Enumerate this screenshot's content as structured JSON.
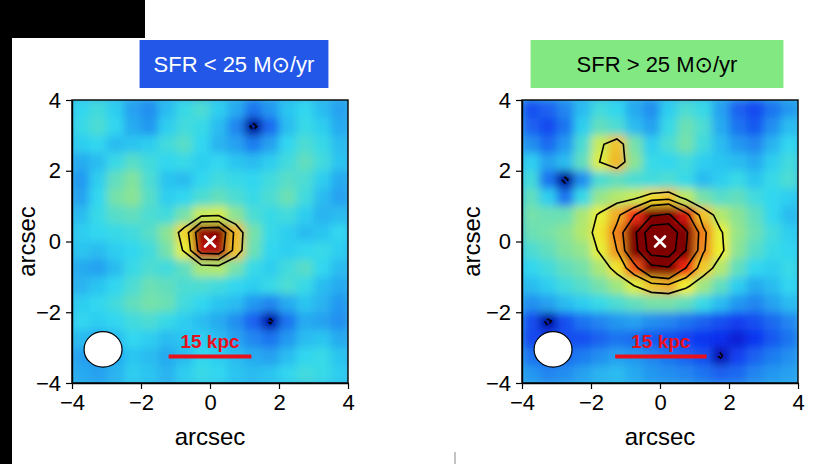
{
  "chart_data": [
    {
      "type": "heatmap",
      "title": "SFR < 25 M⊙/yr",
      "xlabel": "arcsec",
      "ylabel": "arcsec",
      "xlim": [
        -4,
        4
      ],
      "ylim": [
        -4,
        4
      ],
      "xticks": [
        {
          "value": -4,
          "label": "−4"
        },
        {
          "value": -2,
          "label": "−2"
        },
        0,
        2,
        4
      ],
      "yticks": [
        {
          "value": -4,
          "label": "−4"
        },
        {
          "value": -2,
          "label": "−2"
        },
        0,
        2,
        4
      ],
      "zlim": [
        -2.5,
        5
      ],
      "cells": [
        [
          0.3,
          0.5,
          0.2,
          -0.3,
          -0.5,
          0.0,
          0.4,
          0.6,
          0.2,
          -0.2,
          -0.8,
          -0.4,
          0.1,
          0.3,
          0.0,
          -0.3
        ],
        [
          0.4,
          0.6,
          0.3,
          -0.2,
          -0.4,
          0.2,
          0.5,
          0.4,
          0.0,
          -0.6,
          -2.3,
          -0.9,
          0.0,
          0.4,
          0.2,
          -0.2
        ],
        [
          0.2,
          0.3,
          0.0,
          0.1,
          0.2,
          0.5,
          0.7,
          0.3,
          -0.1,
          -0.3,
          -0.7,
          -0.3,
          0.3,
          0.6,
          0.4,
          0.0
        ],
        [
          -0.2,
          0.0,
          0.4,
          0.7,
          0.5,
          0.3,
          0.4,
          0.2,
          0.3,
          0.1,
          0.0,
          0.2,
          0.5,
          0.8,
          0.5,
          0.1
        ],
        [
          -0.4,
          0.2,
          0.8,
          1.1,
          0.6,
          0.1,
          0.0,
          0.3,
          0.5,
          0.4,
          0.3,
          0.5,
          0.7,
          0.6,
          0.2,
          -0.2
        ],
        [
          -0.3,
          0.3,
          1.0,
          1.2,
          0.7,
          0.2,
          0.3,
          0.6,
          0.8,
          0.6,
          0.4,
          0.6,
          0.9,
          0.5,
          0.0,
          -0.3
        ],
        [
          0.0,
          0.4,
          0.7,
          0.8,
          0.6,
          0.5,
          1.0,
          1.8,
          1.9,
          1.2,
          0.6,
          0.4,
          0.5,
          0.2,
          -0.1,
          0.0
        ],
        [
          0.2,
          0.3,
          0.4,
          0.5,
          0.7,
          1.2,
          2.4,
          4.8,
          4.9,
          2.7,
          1.0,
          0.4,
          0.2,
          0.0,
          0.1,
          0.3
        ],
        [
          0.1,
          0.0,
          0.2,
          0.3,
          0.5,
          1.0,
          2.1,
          4.5,
          4.6,
          2.6,
          0.9,
          0.3,
          0.2,
          0.3,
          0.4,
          0.2
        ],
        [
          -0.2,
          -0.3,
          0.0,
          0.4,
          0.6,
          0.5,
          0.8,
          1.5,
          1.6,
          1.0,
          0.4,
          0.2,
          0.5,
          0.7,
          0.3,
          0.0
        ],
        [
          -0.1,
          0.1,
          0.3,
          0.6,
          0.9,
          0.8,
          0.6,
          0.6,
          0.5,
          0.3,
          0.2,
          0.4,
          0.6,
          0.4,
          0.0,
          -0.2
        ],
        [
          0.2,
          0.3,
          0.5,
          0.8,
          1.0,
          0.9,
          0.5,
          0.3,
          0.1,
          0.0,
          -0.4,
          -0.6,
          -0.2,
          0.1,
          -0.1,
          -0.4
        ],
        [
          0.3,
          0.2,
          0.3,
          0.5,
          0.6,
          0.4,
          0.2,
          0.0,
          -0.2,
          -0.5,
          -1.0,
          -2.2,
          -0.8,
          -0.2,
          -0.3,
          -0.5
        ],
        [
          0.0,
          -0.2,
          0.0,
          0.3,
          0.2,
          0.0,
          0.1,
          0.2,
          0.0,
          -0.3,
          -0.6,
          -0.8,
          -0.4,
          0.0,
          0.1,
          -0.2
        ],
        [
          -0.3,
          -0.4,
          -0.2,
          0.1,
          0.0,
          -0.2,
          0.0,
          0.3,
          0.2,
          0.0,
          -0.2,
          -0.3,
          0.0,
          0.3,
          0.4,
          0.1
        ],
        [
          -0.2,
          -0.3,
          -0.1,
          0.2,
          0.1,
          -0.1,
          0.2,
          0.4,
          0.3,
          0.1,
          0.0,
          0.1,
          0.3,
          0.5,
          0.4,
          0.2
        ]
      ],
      "contour_levels": [
        2,
        3,
        4
      ],
      "negative_contour_levels": [
        -2
      ],
      "center": [
        0,
        0
      ],
      "marker": "x",
      "beam": {
        "x": -3.1,
        "y": -3.05,
        "major": 1.1,
        "minor": 1.0
      },
      "scale_bar": {
        "label": "15 kpc",
        "x0": -1.2,
        "x1": 1.2,
        "y": -3.25
      }
    },
    {
      "type": "heatmap",
      "title": "SFR > 25 M⊙/yr",
      "xlabel": "arcsec",
      "ylabel": "arcsec",
      "xlim": [
        -4,
        4
      ],
      "ylim": [
        -4,
        4
      ],
      "xticks": [
        {
          "value": -4,
          "label": "−4"
        },
        {
          "value": -2,
          "label": "−2"
        },
        0,
        2,
        4
      ],
      "yticks": [
        {
          "value": -4,
          "label": "−4"
        },
        {
          "value": -2,
          "label": "−2"
        },
        0,
        2,
        4
      ],
      "zlim": [
        -2.5,
        5
      ],
      "cells": [
        [
          -1.2,
          -1.0,
          -0.6,
          0.0,
          0.5,
          0.3,
          -0.2,
          -0.5,
          0.2,
          0.6,
          0.4,
          -0.3,
          -1.0,
          -1.3,
          -0.8,
          -0.4
        ],
        [
          -1.0,
          -1.3,
          -0.8,
          0.2,
          0.8,
          0.6,
          0.0,
          -0.3,
          0.4,
          0.9,
          0.6,
          -0.2,
          -0.8,
          -1.1,
          -0.5,
          0.0
        ],
        [
          -0.5,
          -0.9,
          -0.4,
          0.6,
          1.8,
          2.6,
          1.0,
          0.2,
          0.6,
          1.0,
          0.5,
          0.0,
          -0.4,
          -0.6,
          -0.1,
          0.3
        ],
        [
          0.2,
          -0.3,
          0.0,
          0.8,
          2.0,
          2.7,
          1.2,
          0.4,
          0.3,
          0.5,
          0.2,
          0.1,
          0.0,
          -0.2,
          0.2,
          0.5
        ],
        [
          0.5,
          -0.8,
          -2.3,
          -0.5,
          0.6,
          0.8,
          0.6,
          0.5,
          0.6,
          0.4,
          0.0,
          0.2,
          0.4,
          0.1,
          0.4,
          0.6
        ],
        [
          0.8,
          0.2,
          -0.8,
          0.4,
          1.3,
          1.6,
          1.8,
          2.4,
          2.6,
          1.7,
          1.0,
          0.7,
          0.8,
          0.5,
          0.3,
          0.2
        ],
        [
          1.0,
          0.9,
          0.9,
          1.5,
          2.1,
          2.8,
          3.9,
          5.8,
          6.2,
          4.3,
          2.6,
          1.6,
          1.2,
          0.8,
          0.3,
          0.0
        ],
        [
          0.9,
          1.0,
          1.2,
          1.6,
          2.3,
          3.2,
          5.5,
          9.5,
          9.8,
          6.3,
          3.2,
          2.1,
          1.3,
          0.9,
          0.5,
          0.2
        ],
        [
          0.6,
          0.8,
          1.1,
          1.3,
          2.1,
          3.0,
          5.2,
          9.0,
          9.3,
          6.0,
          3.1,
          2.2,
          1.2,
          0.7,
          0.4,
          0.3
        ],
        [
          0.3,
          0.5,
          0.8,
          1.0,
          1.5,
          2.3,
          3.6,
          5.4,
          5.8,
          4.0,
          2.5,
          1.6,
          0.8,
          0.3,
          0.2,
          0.4
        ],
        [
          0.0,
          0.2,
          0.5,
          0.7,
          1.0,
          1.4,
          2.0,
          2.6,
          2.8,
          2.2,
          1.4,
          0.8,
          0.2,
          -0.2,
          0.0,
          0.3
        ],
        [
          -0.5,
          -0.3,
          0.0,
          0.2,
          0.4,
          0.6,
          0.8,
          1.0,
          1.0,
          0.8,
          0.4,
          0.0,
          -0.4,
          -0.6,
          -0.3,
          0.0
        ],
        [
          -1.2,
          -2.2,
          -1.2,
          -0.8,
          -0.6,
          -0.4,
          -0.3,
          -0.5,
          -0.6,
          -0.8,
          -1.0,
          -1.2,
          -1.4,
          -1.2,
          -0.9,
          -0.6
        ],
        [
          -1.3,
          -1.4,
          -1.2,
          -1.2,
          -1.0,
          -0.8,
          -0.9,
          -1.1,
          -1.2,
          -1.4,
          -1.5,
          -1.6,
          -1.8,
          -1.5,
          -1.1,
          -0.8
        ],
        [
          -0.8,
          -1.0,
          -0.9,
          -0.7,
          -0.5,
          -0.3,
          -0.4,
          -0.6,
          -0.8,
          -1.0,
          -1.2,
          -2.1,
          -1.4,
          -1.0,
          -0.7,
          -0.5
        ],
        [
          -0.4,
          -0.6,
          -0.5,
          -0.3,
          -0.1,
          0.0,
          -0.2,
          -0.4,
          -0.5,
          -0.6,
          -0.8,
          -1.0,
          -0.9,
          -0.6,
          -0.4,
          -0.3
        ]
      ],
      "contour_levels": [
        2,
        3,
        4,
        6,
        8
      ],
      "negative_contour_levels": [
        -2
      ],
      "center": [
        0,
        0
      ],
      "marker": "x",
      "beam": {
        "x": -3.1,
        "y": -3.05,
        "major": 1.1,
        "minor": 1.0
      },
      "scale_bar": {
        "label": "15 kpc",
        "x0": -1.3,
        "x1": 1.35,
        "y": -3.25
      }
    }
  ]
}
